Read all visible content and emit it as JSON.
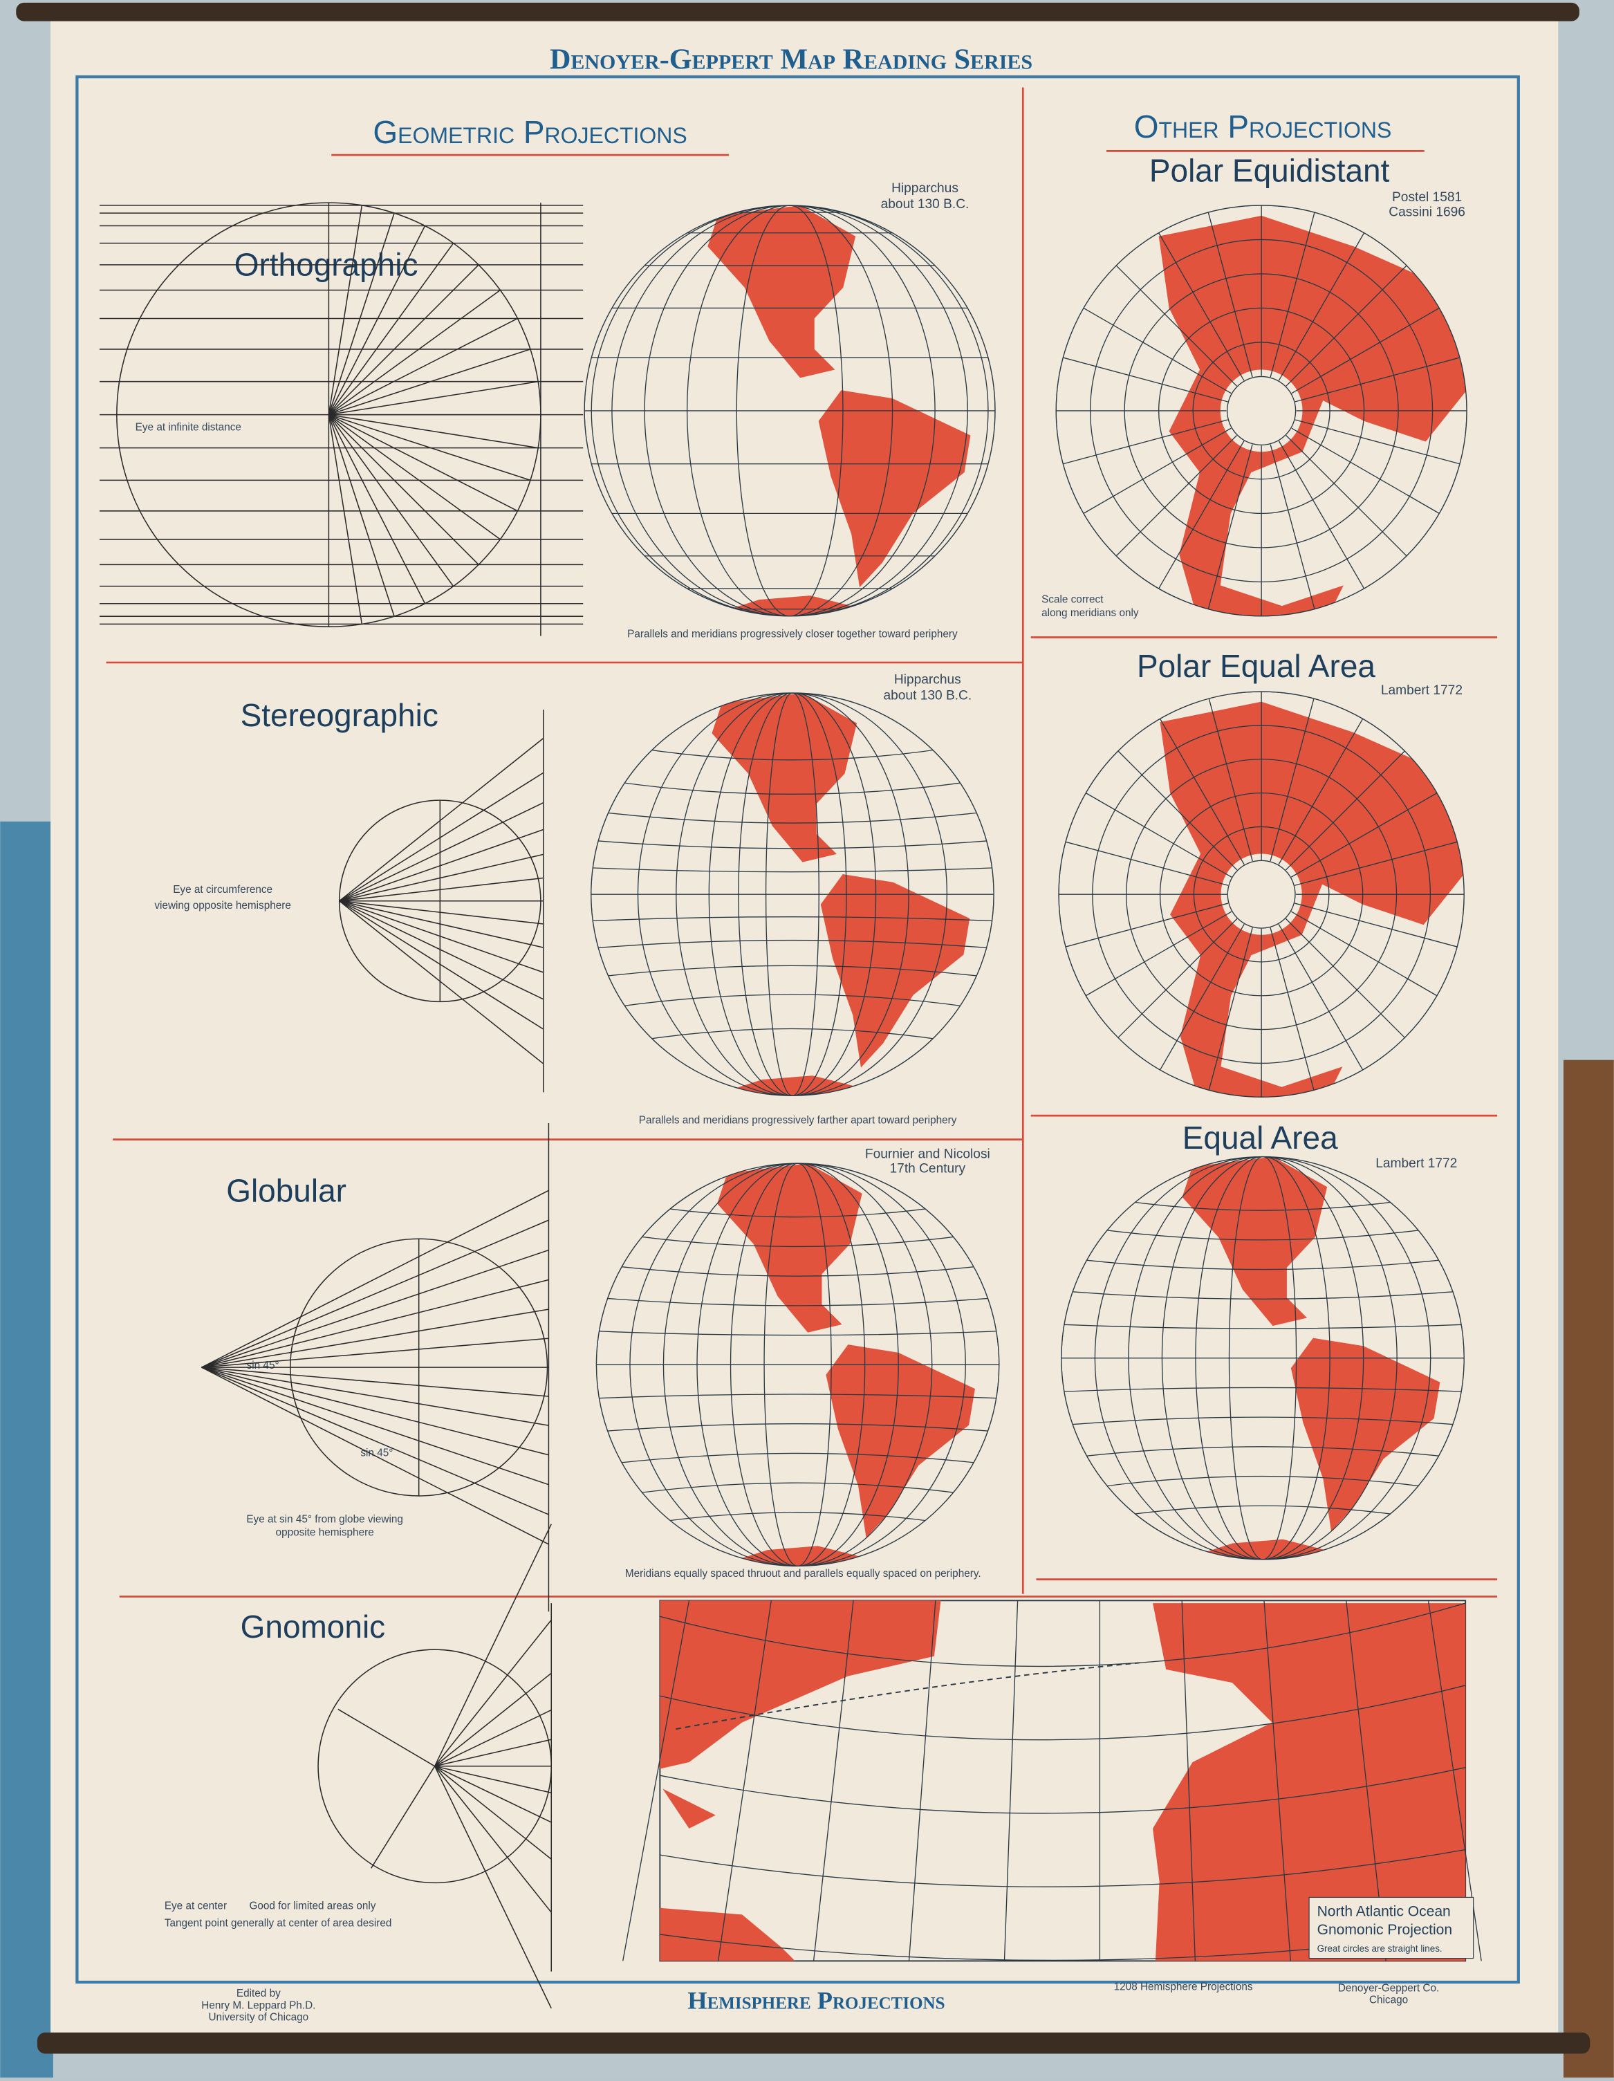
{
  "header": {
    "title": "Denoyer-Geppert Map Reading Series"
  },
  "sections": {
    "geometric": "Geometric Projections",
    "other": "Other Projections"
  },
  "panels": {
    "orthographic": {
      "name": "Orthographic",
      "source": [
        "Hipparchus",
        "about 130 B.C."
      ],
      "eye": "Eye at infinite distance",
      "note": "Parallels and meridians progressively closer together toward periphery"
    },
    "stereographic": {
      "name": "Stereographic",
      "source": [
        "Hipparchus",
        "about 130 B.C."
      ],
      "eye": [
        "Eye at circumference",
        "viewing opposite hemisphere"
      ],
      "note": "Parallels and meridians progressively farther apart toward periphery"
    },
    "globular": {
      "name": "Globular",
      "source": [
        "Fournier and Nicolosi",
        "17th Century"
      ],
      "eye": [
        "Eye at sin 45° from globe viewing",
        "opposite hemisphere"
      ],
      "sin": "sin 45°",
      "note": "Meridians equally spaced thruout and parallels equally spaced on periphery."
    },
    "gnomonic": {
      "name": "Gnomonic",
      "eye": "Eye at center",
      "good": "Good for limited areas only",
      "tangent": "Tangent point generally at center of area desired",
      "box": [
        "North Atlantic Ocean",
        "Gnomonic Projection",
        "Great circles are straight lines."
      ]
    },
    "polar_equidistant": {
      "name": "Polar Equidistant",
      "source": [
        "Postel 1581",
        "Cassini 1696"
      ],
      "note": [
        "Scale correct",
        "along meridians only"
      ]
    },
    "polar_equal_area": {
      "name": "Polar Equal Area",
      "source": "Lambert 1772"
    },
    "equal_area": {
      "name": "Equal Area",
      "source": "Lambert 1772"
    }
  },
  "footer": {
    "title": "Hemisphere Projections",
    "editor": [
      "Edited by",
      "Henry M. Leppard Ph.D.",
      "University of Chicago"
    ],
    "number": "1208 Hemisphere Projections",
    "publisher": [
      "Denoyer-Geppert Co.",
      "Chicago"
    ]
  }
}
